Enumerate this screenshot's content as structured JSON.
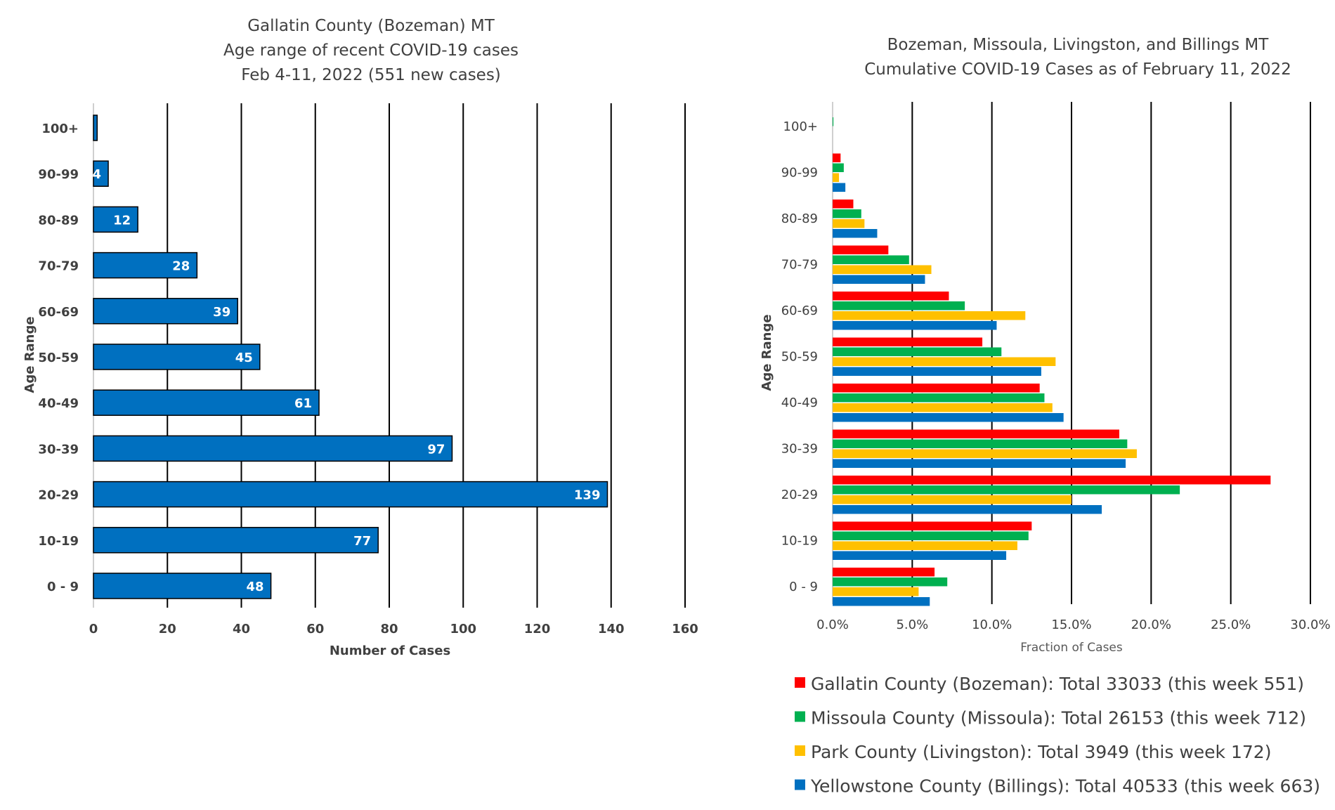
{
  "chart_data": [
    {
      "type": "bar",
      "orientation": "horizontal",
      "title": [
        "Gallatin County (Bozeman) MT",
        "Age range of recent COVID-19 cases",
        "Feb 4-11, 2022 (551 new cases)"
      ],
      "xlabel": "Number of Cases",
      "ylabel": "Age Range",
      "categories": [
        "100+",
        "90-99",
        "80-89",
        "70-79",
        "60-69",
        "50-59",
        "40-49",
        "30-39",
        "20-29",
        "10-19",
        "0 - 9"
      ],
      "values": [
        1,
        4,
        12,
        28,
        39,
        45,
        61,
        97,
        139,
        77,
        48
      ],
      "data_labels": [
        "",
        "4",
        "12",
        "28",
        "39",
        "45",
        "61",
        "97",
        "139",
        "77",
        "48"
      ],
      "xlim": [
        0,
        160
      ],
      "xticks": [
        "0",
        "20",
        "40",
        "60",
        "80",
        "100",
        "120",
        "140",
        "160"
      ],
      "xtick_values": [
        0,
        20,
        40,
        60,
        80,
        100,
        120,
        140,
        160
      ],
      "grid": "vertical",
      "bar_color": "#0070c0"
    },
    {
      "type": "bar",
      "orientation": "horizontal",
      "title": [
        "Bozeman, Missoula, Livingston, and Billings MT",
        "Cumulative COVID-19 Cases as of February 11, 2022"
      ],
      "xlabel": "Fraction of Cases",
      "ylabel": "Age Range",
      "categories": [
        "100+",
        "90-99",
        "80-89",
        "70-79",
        "60-69",
        "50-59",
        "40-49",
        "30-39",
        "20-29",
        "10-19",
        "0 - 9"
      ],
      "xlim": [
        0,
        0.3
      ],
      "xticks": [
        "0.0%",
        "5.0%",
        "10.0%",
        "15.0%",
        "20.0%",
        "25.0%",
        "30.0%"
      ],
      "xtick_values": [
        0,
        0.05,
        0.1,
        0.15,
        0.2,
        0.25,
        0.3
      ],
      "grid": "vertical",
      "legend_position": "bottom",
      "series": [
        {
          "name": "Gallatin County (Bozeman): Total 33033 (this week 551)",
          "color": "#ff0000",
          "values": [
            0.0,
            0.005,
            0.013,
            0.035,
            0.073,
            0.094,
            0.13,
            0.18,
            0.275,
            0.125,
            0.064
          ]
        },
        {
          "name": "Missoula County (Missoula): Total 26153 (this week 712)",
          "color": "#00b050",
          "values": [
            0.0005,
            0.007,
            0.018,
            0.048,
            0.083,
            0.106,
            0.133,
            0.185,
            0.218,
            0.123,
            0.072
          ]
        },
        {
          "name": "Park County (Livingston): Total 3949 (this week 172)",
          "color": "#ffc000",
          "values": [
            0.0,
            0.004,
            0.02,
            0.062,
            0.121,
            0.14,
            0.138,
            0.191,
            0.15,
            0.116,
            0.054
          ]
        },
        {
          "name": "Yellowstone County (Billings): Total 40533 (this week 663)",
          "color": "#0070c0",
          "values": [
            0.0,
            0.008,
            0.028,
            0.058,
            0.103,
            0.131,
            0.145,
            0.184,
            0.169,
            0.109,
            0.061
          ]
        }
      ]
    }
  ]
}
